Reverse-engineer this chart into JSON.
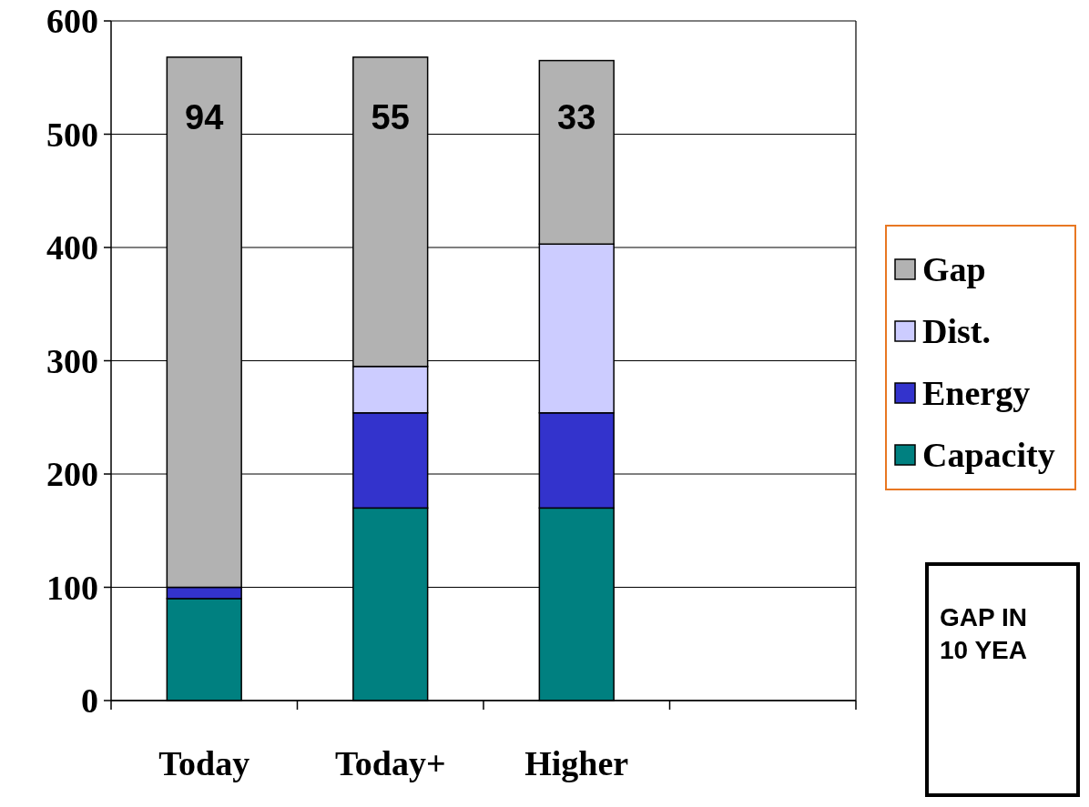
{
  "chart_data": {
    "type": "bar",
    "stacked": true,
    "categories": [
      "Today",
      "Today+",
      "Higher",
      null
    ],
    "series": [
      {
        "name": "Capacity",
        "color": "#008080",
        "values": [
          90,
          170,
          170,
          null
        ]
      },
      {
        "name": "Energy",
        "color": "#3333cc",
        "values": [
          10,
          84,
          84,
          null
        ]
      },
      {
        "name": "Dist.",
        "color": "#ccccff",
        "values": [
          null,
          41,
          149,
          null
        ]
      },
      {
        "name": "Gap",
        "color": "#b2b2b2",
        "values": [
          468,
          273,
          162,
          null
        ]
      }
    ],
    "ylim": [
      0,
      600
    ],
    "yticks": [
      0,
      100,
      200,
      300,
      400,
      500,
      600
    ],
    "grid": "y",
    "legend": "right",
    "annotations": [
      "94",
      "55",
      "33",
      "GAP IN 10 YEA"
    ]
  }
}
